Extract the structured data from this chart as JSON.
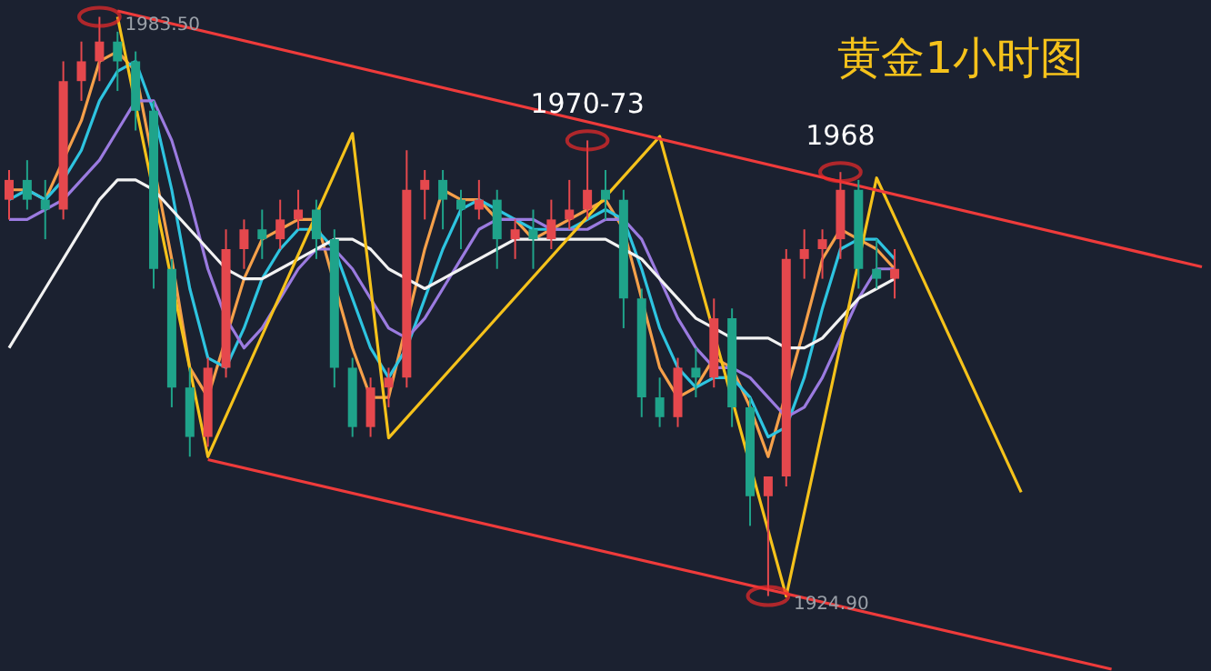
{
  "chart_data": {
    "type": "candlestick",
    "title": "黄金1小时图",
    "categories": [
      null,
      null,
      null,
      null,
      null,
      null,
      null,
      null,
      null,
      null,
      null,
      null,
      null,
      null,
      null,
      null,
      null,
      null,
      null,
      null,
      null,
      null,
      null,
      null,
      null,
      null,
      null,
      null,
      null,
      null,
      null,
      null,
      null,
      null,
      null,
      null,
      null,
      null,
      null,
      null,
      null,
      null,
      null,
      null,
      null,
      null,
      null,
      null,
      null,
      null,
      null,
      null,
      null,
      null,
      null,
      null,
      null,
      null,
      null,
      null,
      null,
      null,
      null,
      null,
      null,
      null,
      null
    ],
    "ohlc": [
      [
        1965,
        1968,
        1963,
        1967
      ],
      [
        1967,
        1969,
        1964,
        1965
      ],
      [
        1965,
        1967,
        1961,
        1964
      ],
      [
        1964,
        1979,
        1963,
        1977
      ],
      [
        1977,
        1981,
        1975,
        1979
      ],
      [
        1979,
        1983.5,
        1977,
        1981
      ],
      [
        1981,
        1982,
        1976,
        1979
      ],
      [
        1979,
        1980,
        1972,
        1974
      ],
      [
        1974,
        1975,
        1956,
        1958
      ],
      [
        1958,
        1959,
        1944,
        1946
      ],
      [
        1946,
        1948,
        1939,
        1941
      ],
      [
        1941,
        1949,
        1940,
        1948
      ],
      [
        1948,
        1962,
        1947,
        1960
      ],
      [
        1960,
        1963,
        1958,
        1962
      ],
      [
        1962,
        1964,
        1959,
        1961
      ],
      [
        1961,
        1965,
        1960,
        1963
      ],
      [
        1963,
        1966,
        1962,
        1964
      ],
      [
        1964,
        1965,
        1959,
        1961
      ],
      [
        1961,
        1962,
        1946,
        1948
      ],
      [
        1948,
        1949,
        1941,
        1942
      ],
      [
        1942,
        1947,
        1941,
        1946
      ],
      [
        1946,
        1948,
        1944,
        1947
      ],
      [
        1947,
        1970,
        1946,
        1966
      ],
      [
        1966,
        1968,
        1963,
        1967
      ],
      [
        1967,
        1968,
        1962,
        1965
      ],
      [
        1965,
        1966,
        1960,
        1964
      ],
      [
        1964,
        1967,
        1963,
        1965
      ],
      [
        1965,
        1966,
        1958,
        1961
      ],
      [
        1961,
        1963,
        1959,
        1962
      ],
      [
        1962,
        1964,
        1958,
        1961
      ],
      [
        1961,
        1965,
        1960,
        1963
      ],
      [
        1963,
        1967,
        1962,
        1964
      ],
      [
        1964,
        1971,
        1963,
        1966
      ],
      [
        1966,
        1968,
        1963,
        1965
      ],
      [
        1965,
        1966,
        1952,
        1955
      ],
      [
        1955,
        1956,
        1943,
        1945
      ],
      [
        1945,
        1947,
        1942,
        1943
      ],
      [
        1943,
        1949,
        1942,
        1948
      ],
      [
        1948,
        1950,
        1945,
        1947
      ],
      [
        1947,
        1955,
        1946,
        1953
      ],
      [
        1953,
        1954,
        1942,
        1944
      ],
      [
        1944,
        1945,
        1932,
        1935
      ],
      [
        1935,
        1937,
        1924.9,
        1937
      ],
      [
        1937,
        1960,
        1936,
        1959
      ],
      [
        1959,
        1962,
        1957,
        1960
      ],
      [
        1960,
        1962,
        1957,
        1961
      ],
      [
        1961,
        1967.8,
        1959,
        1966
      ],
      [
        1966,
        1967,
        1956,
        1958
      ],
      [
        1958,
        1961,
        1956,
        1957
      ],
      [
        1957,
        1960,
        1955,
        1958
      ],
      null,
      null,
      null,
      null,
      null,
      null,
      null,
      null,
      null,
      null,
      null,
      null,
      null,
      null,
      null,
      null,
      null
    ],
    "series": [
      {
        "type": "line",
        "color": "#f5a04a",
        "values": [
          1966,
          1966,
          1965,
          1969,
          1973,
          1979,
          1980,
          1978,
          null,
          1959,
          1948,
          1945,
          null,
          1957,
          1961,
          1962,
          1963,
          1963,
          null,
          1950,
          1945,
          1945,
          null,
          1960,
          1966,
          1965,
          1965,
          1963,
          1963,
          1961,
          1962,
          1963,
          1964,
          1965,
          1962,
          1955,
          1948,
          1945,
          1946,
          1949,
          1948,
          1944,
          1939,
          null,
          1952,
          1959,
          1962,
          1961,
          1960,
          1958,
          null,
          null,
          null,
          null,
          null,
          null,
          null,
          null,
          null,
          null,
          null,
          null,
          null,
          null,
          null,
          null,
          null
        ]
      },
      {
        "type": "line",
        "color": "#2ec4e0",
        "values": [
          1965,
          1966,
          1965,
          1967,
          1970,
          1975,
          1978,
          1979,
          1974,
          1966,
          1956,
          1949,
          1948,
          1952,
          1957,
          1960,
          1962,
          1962,
          1960,
          1955,
          1950,
          1947,
          1950,
          1955,
          1960,
          1964,
          1965,
          1964,
          1963,
          1962,
          1962,
          1962,
          1963,
          1964,
          1963,
          1958,
          1952,
          1948,
          1946,
          1947,
          1947,
          1945,
          1941,
          1942,
          1947,
          1954,
          1960,
          1961,
          1961,
          1959,
          null,
          null,
          null,
          null,
          null,
          null,
          null,
          null,
          null,
          null,
          null,
          null,
          null,
          null,
          null,
          null,
          null
        ]
      },
      {
        "type": "line",
        "color": "#9b7be0",
        "values": [
          1963,
          1963,
          1964,
          1965,
          1967,
          1969,
          1972,
          1975,
          1975,
          1971,
          1965,
          1958,
          1953,
          1950,
          1952,
          1955,
          1958,
          1960,
          1960,
          1958,
          1955,
          1952,
          1951,
          1953,
          1956,
          1959,
          1962,
          1963,
          1963,
          1963,
          1962,
          1962,
          1962,
          1963,
          1963,
          1961,
          1957,
          1953,
          1950,
          1948,
          1948,
          1947,
          1945,
          1943,
          1944,
          1947,
          1951,
          1955,
          1958,
          1958,
          null,
          null,
          null,
          null,
          null,
          null,
          null,
          null,
          null,
          null,
          null,
          null,
          null,
          null,
          null,
          null,
          null
        ]
      },
      {
        "type": "line",
        "color": "#f2f2f2",
        "values": [
          1950,
          1953,
          1956,
          1959,
          1962,
          1965,
          1967,
          1967,
          1966,
          1964,
          1962,
          1960,
          1958,
          1957,
          1957,
          1958,
          1959,
          1960,
          1961,
          1961,
          1960,
          1958,
          1957,
          1956,
          1957,
          1958,
          1959,
          1960,
          1961,
          1961,
          1961,
          1961,
          1961,
          1961,
          1960,
          1959,
          1957,
          1955,
          1953,
          1952,
          1951,
          1951,
          1951,
          1950,
          1950,
          1951,
          1953,
          1955,
          1956,
          1957,
          null,
          null,
          null,
          null,
          null,
          null,
          null,
          null,
          null,
          null,
          null,
          null,
          null,
          null,
          null,
          null,
          null
        ]
      },
      {
        "type": "line",
        "color": "#f5c21b",
        "values": [
          null,
          null,
          null,
          null,
          null,
          null,
          1983.5,
          null,
          null,
          null,
          null,
          1939,
          null,
          null,
          null,
          null,
          null,
          null,
          null,
          1971.7,
          null,
          1940.9,
          null,
          null,
          null,
          null,
          null,
          null,
          null,
          null,
          null,
          null,
          null,
          null,
          null,
          null,
          1971.4,
          null,
          null,
          null,
          null,
          null,
          null,
          1924.9,
          null,
          null,
          null,
          null,
          1967.2,
          null,
          null,
          null,
          null,
          null,
          null,
          null,
          1935.4,
          null,
          null,
          null,
          null,
          null,
          null,
          null,
          null,
          null,
          null
        ]
      },
      {
        "type": "line",
        "color": "#ee3b3b",
        "values": [
          null,
          null,
          null,
          null,
          null,
          null,
          1984.1,
          null,
          null,
          null,
          null,
          null,
          null,
          null,
          null,
          null,
          null,
          null,
          null,
          null,
          null,
          null,
          null,
          null,
          null,
          null,
          null,
          null,
          null,
          null,
          null,
          null,
          null,
          null,
          null,
          null,
          null,
          null,
          null,
          null,
          null,
          null,
          null,
          null,
          null,
          null,
          null,
          null,
          null,
          null,
          null,
          null,
          null,
          null,
          null,
          null,
          null,
          null,
          null,
          null,
          null,
          null,
          null,
          null,
          null,
          null,
          1958.2
        ]
      },
      {
        "type": "line",
        "color": "#ee3b3b",
        "values": [
          null,
          null,
          null,
          null,
          null,
          null,
          null,
          null,
          null,
          null,
          null,
          1938.7,
          null,
          null,
          null,
          null,
          null,
          null,
          null,
          null,
          null,
          null,
          null,
          null,
          null,
          null,
          null,
          null,
          null,
          null,
          null,
          null,
          null,
          null,
          null,
          null,
          null,
          null,
          null,
          null,
          null,
          null,
          null,
          null,
          null,
          null,
          null,
          null,
          null,
          null,
          null,
          null,
          null,
          null,
          null,
          null,
          null,
          null,
          null,
          null,
          null,
          1917.5,
          null,
          null,
          null,
          null,
          null
        ]
      }
    ],
    "annotations": [
      {
        "text": "1983.50",
        "y": 1983.5
      },
      {
        "text": "1970-73",
        "y": 1971
      },
      {
        "text": "1968",
        "y": 1967.8
      },
      {
        "text": "1924.90",
        "y": 1924.9
      }
    ]
  }
}
